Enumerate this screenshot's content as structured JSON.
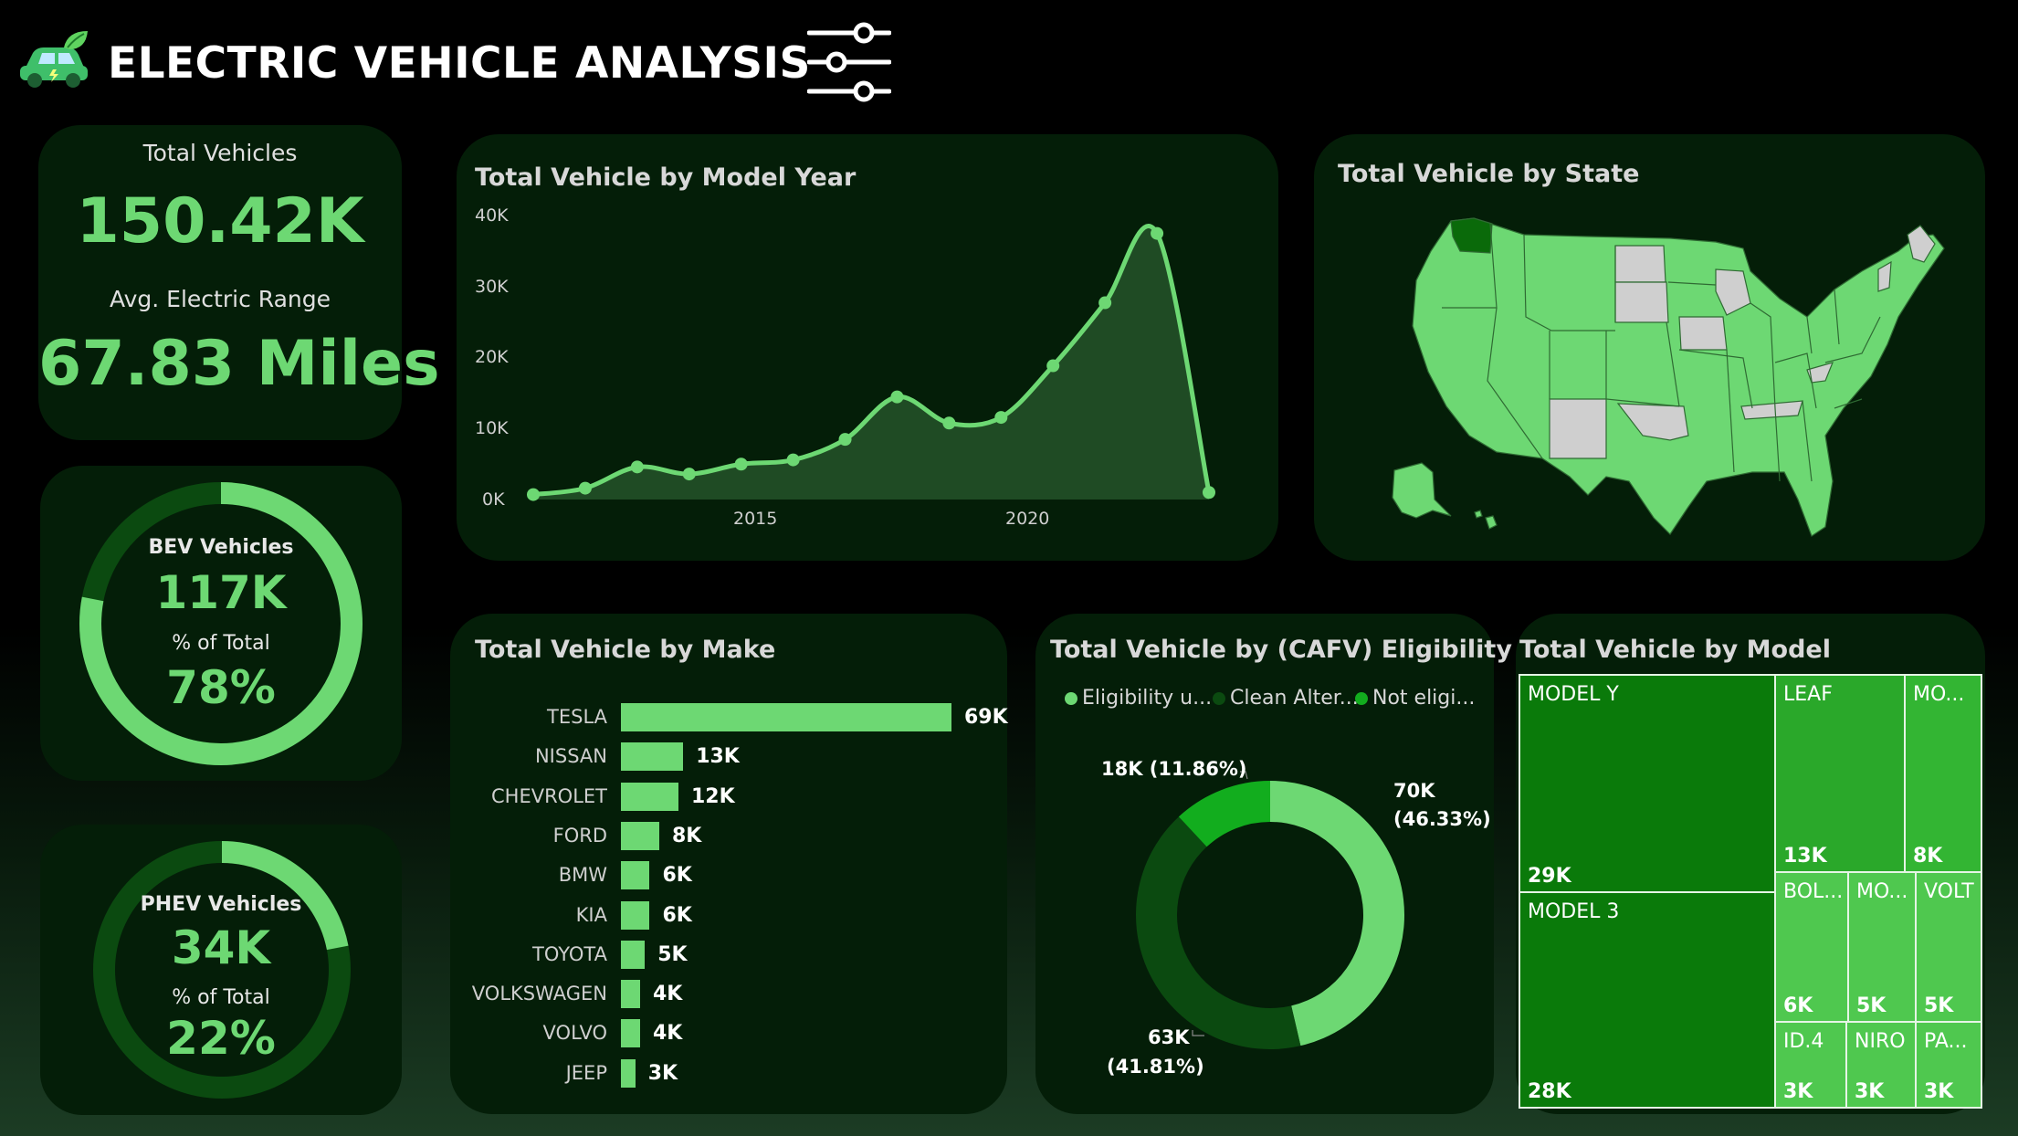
{
  "header": {
    "title": "ELECTRIC VEHICLE ANALYSIS",
    "logo_icon": "electric-car-leaf-icon",
    "filter_icon": "sliders-filter-icon"
  },
  "kpi": {
    "total_vehicles_label": "Total Vehicles",
    "total_vehicles_value": "150.42K",
    "avg_range_label": "Avg. Electric Range",
    "avg_range_value": "67.83 Miles"
  },
  "bev": {
    "label": "BEV Vehicles",
    "value": "117K",
    "pct_label": "% of Total",
    "pct_value": "78%",
    "fraction": 0.78
  },
  "phev": {
    "label": "PHEV Vehicles",
    "value": "34K",
    "pct_label": "% of Total",
    "pct_value": "22%",
    "fraction": 0.22
  },
  "model_year_chart": {
    "title": "Total Vehicle by Model Year",
    "y_ticks": [
      "40K",
      "30K",
      "20K",
      "10K",
      "0K"
    ],
    "x_ticks": [
      "2015",
      "2020"
    ]
  },
  "state_map": {
    "title": "Total Vehicle by State"
  },
  "make_chart": {
    "title": "Total Vehicle by Make"
  },
  "cafv_chart": {
    "title": "Total Vehicle by (CAFV) Eligibility",
    "legend": [
      "Eligibility u...",
      "Clean Alter...",
      "Not eligi..."
    ],
    "labels": {
      "eligible": [
        "70K",
        "(46.33%)"
      ],
      "unknown": [
        "63K",
        "(41.81%)"
      ],
      "not_eligible": [
        "18K (11.86%)"
      ]
    }
  },
  "model_chart": {
    "title": "Total Vehicle by Model",
    "cells": [
      {
        "name": "MODEL Y",
        "value": "29K"
      },
      {
        "name": "MODEL 3",
        "value": "28K"
      },
      {
        "name": "LEAF",
        "value": "13K"
      },
      {
        "name": "MO...",
        "value": "8K"
      },
      {
        "name": "BOL...",
        "value": "6K"
      },
      {
        "name": "MO...",
        "value": "5K"
      },
      {
        "name": "VOLT",
        "value": "5K"
      },
      {
        "name": "ID.4",
        "value": "3K"
      },
      {
        "name": "NIRO",
        "value": "3K"
      },
      {
        "name": "PA...",
        "value": "3K"
      }
    ]
  },
  "chart_data": [
    {
      "type": "area",
      "title": "Total Vehicle by Model Year",
      "x": [
        2011,
        2012,
        2013,
        2014,
        2015,
        2016,
        2017,
        2018,
        2019,
        2020,
        2021,
        2022,
        2023,
        2024
      ],
      "values": [
        700,
        1600,
        4600,
        3600,
        5000,
        5600,
        8500,
        14500,
        10800,
        11600,
        18900,
        27800,
        37600,
        1000
      ],
      "ylim": [
        0,
        40000
      ],
      "y_ticks": [
        0,
        10000,
        20000,
        30000,
        40000
      ],
      "x_ticks": [
        2015,
        2020
      ],
      "color": "#6dd873"
    },
    {
      "type": "bar",
      "orientation": "horizontal",
      "title": "Total Vehicle by Make",
      "categories": [
        "TESLA",
        "NISSAN",
        "CHEVROLET",
        "FORD",
        "BMW",
        "KIA",
        "TOYOTA",
        "VOLKSWAGEN",
        "VOLVO",
        "JEEP"
      ],
      "values": [
        69,
        13,
        12,
        8,
        6,
        6,
        5,
        4,
        4,
        3
      ],
      "labels": [
        "69K",
        "13K",
        "12K",
        "8K",
        "6K",
        "6K",
        "5K",
        "4K",
        "4K",
        "3K"
      ],
      "unit": "K",
      "color": "#6dd873"
    },
    {
      "type": "pie",
      "variant": "donut",
      "title": "Total Vehicle by (CAFV) Eligibility",
      "categories": [
        "Eligibility u...",
        "Clean Alter...",
        "Not eligi..."
      ],
      "values": [
        63,
        70,
        18
      ],
      "percents": [
        41.81,
        46.33,
        11.86
      ],
      "colors": [
        "#0b4a10",
        "#6dd873",
        "#12ad1e"
      ]
    },
    {
      "type": "treemap",
      "title": "Total Vehicle by Model",
      "categories": [
        "MODEL Y",
        "MODEL 3",
        "LEAF",
        "MO...",
        "BOL...",
        "MO...",
        "VOLT",
        "ID.4",
        "NIRO",
        "PA..."
      ],
      "values": [
        29,
        28,
        13,
        8,
        6,
        5,
        5,
        3,
        3,
        3
      ],
      "unit": "K"
    }
  ],
  "colors": {
    "accent": "#6dd873",
    "card_bg": "#041e08",
    "dark_green": "#0b4a10",
    "treemap_dark": "#0a7a0a",
    "treemap_mid": "#2aa82a",
    "treemap_light": "#4fc84f",
    "map_gray": "#cfcfcf"
  }
}
